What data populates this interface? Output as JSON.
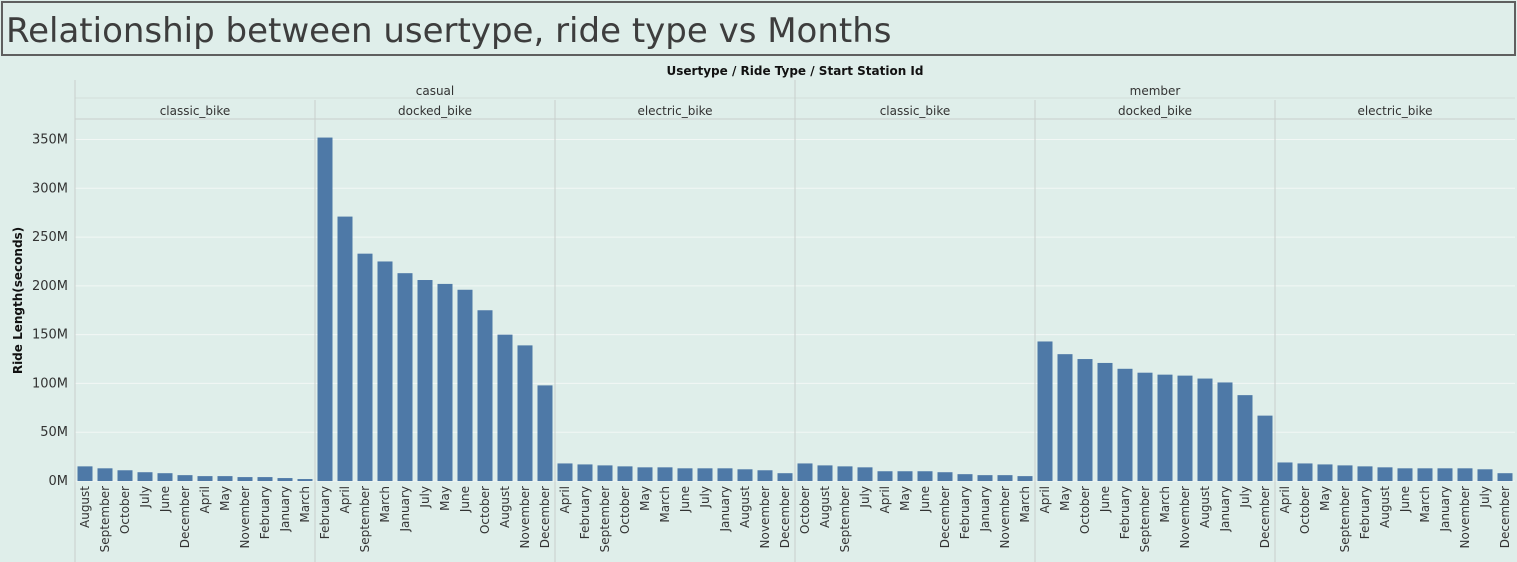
{
  "title": "Relationship between usertype, ride type vs Months",
  "colors": {
    "bar": "#4e79a7",
    "background": "#dfeeea",
    "grid": "#f2f7f5",
    "divider": "#c8cfcc"
  },
  "chart_data": {
    "type": "bar",
    "header_label": "Usertype  /  Ride Type  /  Start Station Id",
    "ylabel": "Ride Length(seconds)",
    "ylim": [
      0,
      370000000
    ],
    "yticks": [
      0,
      50000000,
      100000000,
      150000000,
      200000000,
      250000000,
      300000000,
      350000000
    ],
    "ytick_labels": [
      "0M",
      "50M",
      "100M",
      "150M",
      "200M",
      "250M",
      "300M",
      "350M"
    ],
    "usertypes": [
      {
        "name": "casual",
        "ride_types": [
          {
            "name": "classic_bike",
            "categories": [
              "August",
              "September",
              "October",
              "July",
              "June",
              "December",
              "April",
              "May",
              "November",
              "February",
              "January",
              "March"
            ],
            "values": [
              15000000,
              13000000,
              11000000,
              9000000,
              8000000,
              6000000,
              5000000,
              5000000,
              4000000,
              4000000,
              3000000,
              2000000
            ]
          },
          {
            "name": "docked_bike",
            "categories": [
              "February",
              "April",
              "September",
              "March",
              "January",
              "July",
              "May",
              "June",
              "October",
              "August",
              "November",
              "December"
            ],
            "values": [
              352000000,
              271000000,
              233000000,
              225000000,
              213000000,
              206000000,
              202000000,
              196000000,
              175000000,
              150000000,
              139000000,
              98000000
            ]
          },
          {
            "name": "electric_bike",
            "categories": [
              "April",
              "February",
              "September",
              "October",
              "May",
              "March",
              "June",
              "July",
              "January",
              "August",
              "November",
              "December"
            ],
            "values": [
              18000000,
              17000000,
              16000000,
              15000000,
              14000000,
              14000000,
              13000000,
              13000000,
              13000000,
              12000000,
              11000000,
              8000000
            ]
          }
        ]
      },
      {
        "name": "member",
        "ride_types": [
          {
            "name": "classic_bike",
            "categories": [
              "October",
              "August",
              "September",
              "July",
              "April",
              "May",
              "June",
              "December",
              "February",
              "January",
              "November",
              "March"
            ],
            "values": [
              18000000,
              16000000,
              15000000,
              14000000,
              10000000,
              10000000,
              10000000,
              9000000,
              7000000,
              6000000,
              6000000,
              5000000
            ]
          },
          {
            "name": "docked_bike",
            "categories": [
              "April",
              "May",
              "October",
              "June",
              "February",
              "September",
              "March",
              "November",
              "August",
              "January",
              "July",
              "December"
            ],
            "values": [
              143000000,
              130000000,
              125000000,
              121000000,
              115000000,
              111000000,
              109000000,
              108000000,
              105000000,
              101000000,
              88000000,
              67000000
            ]
          },
          {
            "name": "electric_bike",
            "categories": [
              "April",
              "October",
              "May",
              "September",
              "February",
              "August",
              "June",
              "March",
              "January",
              "November",
              "July",
              "December"
            ],
            "values": [
              19000000,
              18000000,
              17000000,
              16000000,
              15000000,
              14000000,
              13000000,
              13000000,
              13000000,
              13000000,
              12000000,
              8000000
            ]
          }
        ]
      }
    ]
  }
}
